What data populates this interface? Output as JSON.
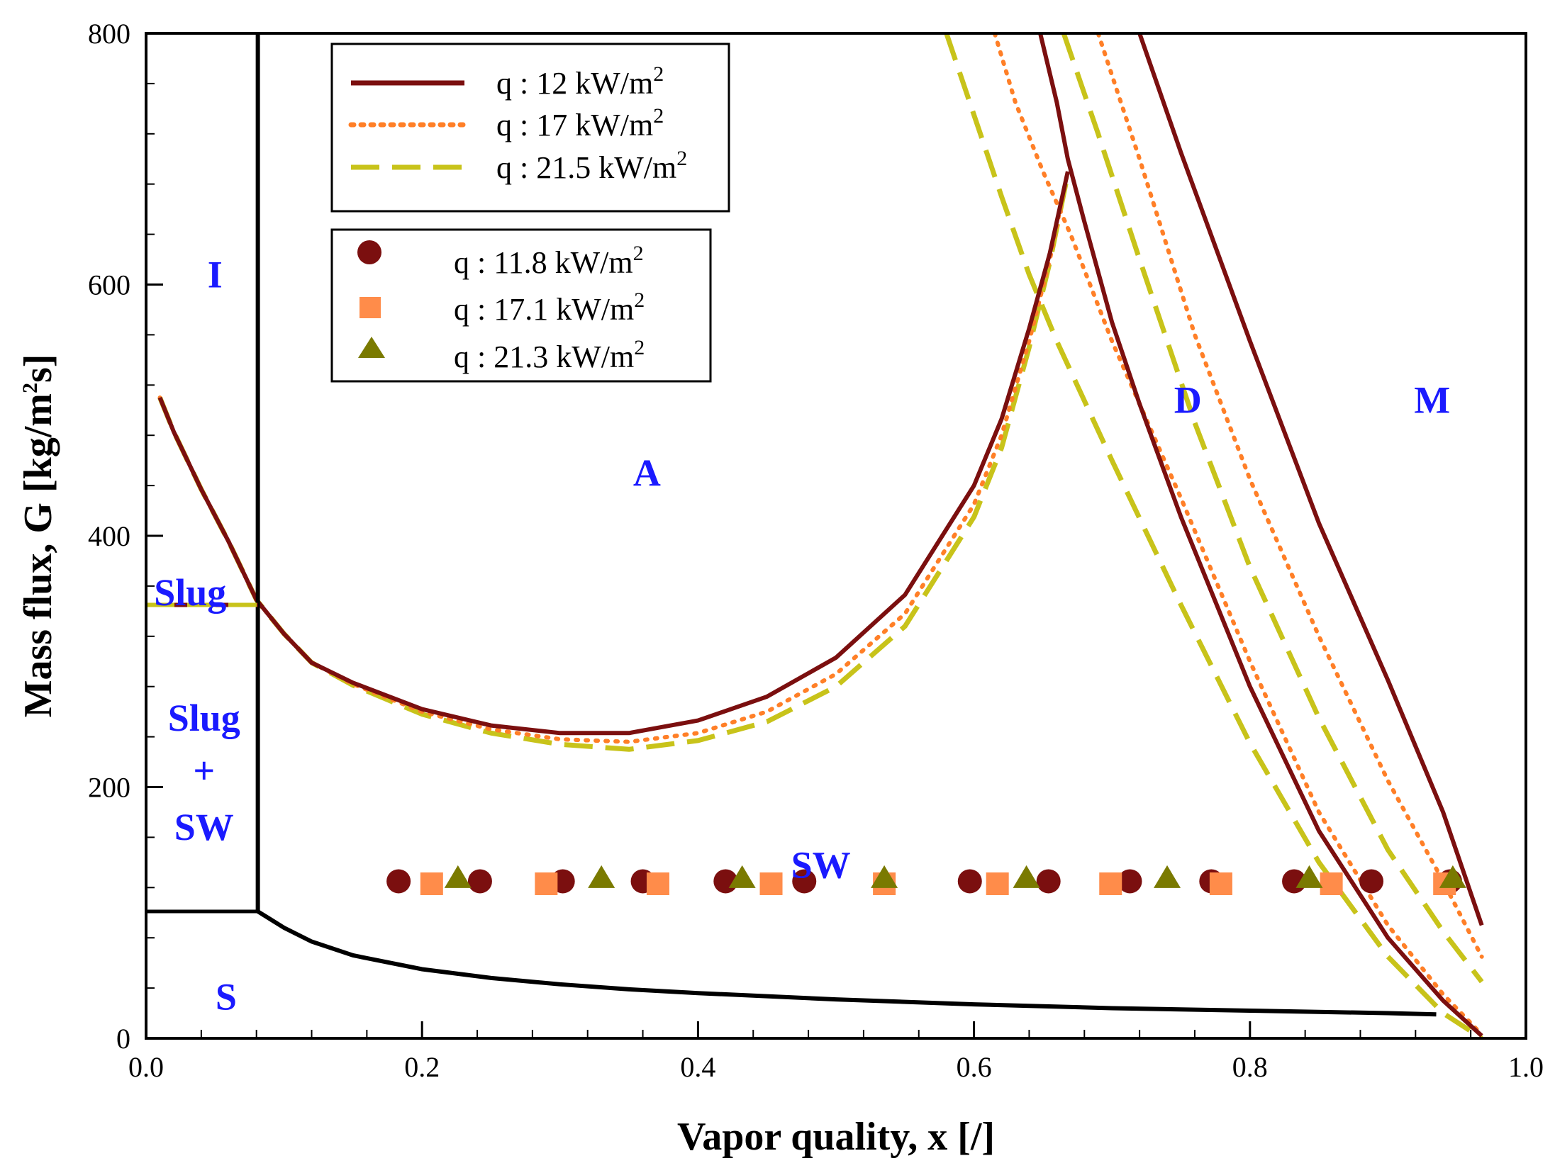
{
  "chart_data": {
    "type": "line",
    "xlabel": "Vapor quality, x [/]",
    "ylabel_main": "Mass flux, G [kg/m",
    "ylabel_sup": "2",
    "ylabel_tail": "s]",
    "xlim": [
      0.0,
      1.0
    ],
    "ylim": [
      0,
      800
    ],
    "x_ticks": [
      0.0,
      0.2,
      0.4,
      0.6,
      0.8,
      1.0
    ],
    "x_tick_labels": [
      "0.0",
      "0.2",
      "0.4",
      "0.6",
      "0.8",
      "1.0"
    ],
    "y_ticks": [
      0,
      200,
      400,
      600,
      800
    ],
    "y_tick_labels": [
      "0",
      "200",
      "400",
      "600",
      "800"
    ],
    "x_minor_step": 0.04,
    "y_minor_step": 40,
    "grid": false,
    "colors": {
      "q12": "#7b0f0f",
      "q17": "#ff7f27",
      "q21": "#c8c31a",
      "boundary": "#000000",
      "region": "#1a1aff",
      "marker_circle": "#7b0f0f",
      "marker_square": "#ff8c4a",
      "marker_triangle": "#7a7a00"
    },
    "model_legend": [
      {
        "prefix": "q : 12  kW/m",
        "sup": "2",
        "style": "solid",
        "color_key": "q12"
      },
      {
        "prefix": "q : 17  kW/m",
        "sup": "2",
        "style": "dotted",
        "color_key": "q17"
      },
      {
        "prefix": "q : 21.5 kW/m",
        "sup": "2",
        "style": "dashed",
        "color_key": "q21"
      }
    ],
    "exp_legend": [
      {
        "prefix": "q : 11.8 kW/m",
        "sup": "2",
        "marker": "circle",
        "color_key": "marker_circle"
      },
      {
        "prefix": "q : 17.1 kW/m",
        "sup": "2",
        "marker": "square",
        "color_key": "marker_square"
      },
      {
        "prefix": "q : 21.3 kW/m",
        "sup": "2",
        "marker": "triangle",
        "color_key": "marker_triangle"
      }
    ],
    "region_labels": [
      {
        "text": "I",
        "x": 0.05,
        "y": 608
      },
      {
        "text": "A",
        "x": 0.363,
        "y": 450
      },
      {
        "text": "D",
        "x": 0.755,
        "y": 508
      },
      {
        "text": "M",
        "x": 0.932,
        "y": 508
      },
      {
        "text": "Slug",
        "x": 0.032,
        "y": 355
      },
      {
        "text": "Slug",
        "x": 0.042,
        "y": 255
      },
      {
        "text": "+",
        "x": 0.042,
        "y": 213
      },
      {
        "text": "SW",
        "x": 0.042,
        "y": 168
      },
      {
        "text": "SW",
        "x": 0.489,
        "y": 138
      },
      {
        "text": "S",
        "x": 0.058,
        "y": 33
      }
    ],
    "boundaries": {
      "vertical_x": 0.081,
      "slug_line_y": 345,
      "sw_slug_line_y": 101,
      "stratified_curve": [
        [
          0.081,
          101
        ],
        [
          0.1,
          88
        ],
        [
          0.12,
          77
        ],
        [
          0.15,
          66
        ],
        [
          0.2,
          55
        ],
        [
          0.25,
          48
        ],
        [
          0.3,
          43
        ],
        [
          0.35,
          39
        ],
        [
          0.4,
          36
        ],
        [
          0.5,
          31
        ],
        [
          0.6,
          27
        ],
        [
          0.7,
          24
        ],
        [
          0.8,
          22
        ],
        [
          0.9,
          20
        ],
        [
          0.935,
          19
        ]
      ]
    },
    "series": [
      {
        "name": "q : 12 kW/m2 (model)",
        "color_key": "q12",
        "style": "solid",
        "segments": [
          [
            [
              0.01,
              510
            ],
            [
              0.02,
              483
            ],
            [
              0.04,
              437
            ],
            [
              0.06,
              395
            ],
            [
              0.08,
              349
            ],
            [
              0.1,
              322
            ],
            [
              0.12,
              299
            ],
            [
              0.15,
              283
            ],
            [
              0.2,
              262
            ],
            [
              0.25,
              249
            ],
            [
              0.3,
              243
            ],
            [
              0.35,
              243
            ],
            [
              0.4,
              253
            ],
            [
              0.45,
              272
            ],
            [
              0.5,
              303
            ],
            [
              0.55,
              353
            ],
            [
              0.6,
              440
            ],
            [
              0.62,
              493
            ],
            [
              0.64,
              565
            ],
            [
              0.655,
              625
            ],
            [
              0.668,
              690
            ]
          ],
          [
            [
              0.648,
              800
            ],
            [
              0.66,
              745
            ],
            [
              0.668,
              700
            ],
            [
              0.68,
              650
            ],
            [
              0.7,
              570
            ],
            [
              0.72,
              505
            ],
            [
              0.75,
              415
            ],
            [
              0.8,
              280
            ],
            [
              0.85,
              165
            ],
            [
              0.9,
              80
            ],
            [
              0.94,
              30
            ],
            [
              0.968,
              2
            ]
          ],
          [
            [
              0.72,
              800
            ],
            [
              0.75,
              705
            ],
            [
              0.8,
              555
            ],
            [
              0.85,
              410
            ],
            [
              0.9,
              285
            ],
            [
              0.94,
              180
            ],
            [
              0.968,
              90
            ]
          ]
        ]
      },
      {
        "name": "q : 17 kW/m2 (model)",
        "color_key": "q17",
        "style": "dotted",
        "segments": [
          [
            [
              0.01,
              510
            ],
            [
              0.02,
              483
            ],
            [
              0.04,
              437
            ],
            [
              0.06,
              395
            ],
            [
              0.08,
              349
            ],
            [
              0.1,
              322
            ],
            [
              0.12,
              299
            ],
            [
              0.15,
              282
            ],
            [
              0.2,
              260
            ],
            [
              0.25,
              246
            ],
            [
              0.3,
              238
            ],
            [
              0.35,
              236
            ],
            [
              0.4,
              243
            ],
            [
              0.45,
              260
            ],
            [
              0.5,
              290
            ],
            [
              0.55,
              338
            ],
            [
              0.6,
              425
            ],
            [
              0.62,
              480
            ],
            [
              0.64,
              555
            ],
            [
              0.655,
              620
            ],
            [
              0.668,
              690
            ]
          ],
          [
            [
              0.615,
              800
            ],
            [
              0.63,
              745
            ],
            [
              0.65,
              690
            ],
            [
              0.67,
              640
            ],
            [
              0.7,
              555
            ],
            [
              0.75,
              430
            ],
            [
              0.8,
              300
            ],
            [
              0.85,
              180
            ],
            [
              0.9,
              90
            ],
            [
              0.94,
              35
            ],
            [
              0.968,
              3
            ]
          ],
          [
            [
              0.69,
              800
            ],
            [
              0.72,
              700
            ],
            [
              0.76,
              560
            ],
            [
              0.8,
              445
            ],
            [
              0.85,
              320
            ],
            [
              0.9,
              205
            ],
            [
              0.94,
              125
            ],
            [
              0.968,
              65
            ]
          ]
        ]
      },
      {
        "name": "q : 21.5 kW/m2 (model)",
        "color_key": "q21",
        "style": "dashed",
        "segments": [
          [
            [
              0.01,
              510
            ],
            [
              0.02,
              483
            ],
            [
              0.04,
              437
            ],
            [
              0.06,
              395
            ],
            [
              0.08,
              349
            ],
            [
              0.1,
              322
            ],
            [
              0.12,
              299
            ],
            [
              0.15,
              281
            ],
            [
              0.2,
              258
            ],
            [
              0.25,
              243
            ],
            [
              0.3,
              234
            ],
            [
              0.35,
              230
            ],
            [
              0.4,
              237
            ],
            [
              0.45,
              252
            ],
            [
              0.5,
              280
            ],
            [
              0.55,
              328
            ],
            [
              0.6,
              415
            ],
            [
              0.62,
              470
            ],
            [
              0.64,
              550
            ],
            [
              0.655,
              618
            ],
            [
              0.668,
              688
            ]
          ],
          [
            [
              0.58,
              800
            ],
            [
              0.6,
              735
            ],
            [
              0.62,
              670
            ],
            [
              0.64,
              608
            ],
            [
              0.66,
              555
            ],
            [
              0.7,
              460
            ],
            [
              0.75,
              345
            ],
            [
              0.8,
              235
            ],
            [
              0.85,
              140
            ],
            [
              0.9,
              65
            ],
            [
              0.94,
              20
            ],
            [
              0.968,
              0
            ]
          ],
          [
            [
              0.665,
              800
            ],
            [
              0.69,
              720
            ],
            [
              0.72,
              620
            ],
            [
              0.76,
              490
            ],
            [
              0.8,
              375
            ],
            [
              0.85,
              255
            ],
            [
              0.9,
              150
            ],
            [
              0.94,
              85
            ],
            [
              0.968,
              45
            ]
          ]
        ]
      }
    ],
    "scatter": [
      {
        "name": "q : 11.8 kW/m2",
        "marker": "circle",
        "color_key": "marker_circle",
        "y": 125,
        "x": [
          0.183,
          0.242,
          0.302,
          0.36,
          0.42,
          0.477,
          0.597,
          0.654,
          0.713,
          0.772,
          0.832,
          0.888,
          0.945
        ]
      },
      {
        "name": "q : 17.1 kW/m2",
        "marker": "square",
        "color_key": "marker_square",
        "y": 123,
        "x": [
          0.207,
          0.29,
          0.371,
          0.453,
          0.535,
          0.617,
          0.699,
          0.779,
          0.859,
          0.941
        ]
      },
      {
        "name": "q : 21.3 kW/m2",
        "marker": "triangle",
        "color_key": "marker_triangle",
        "y": 127,
        "x": [
          0.226,
          0.33,
          0.432,
          0.535,
          0.638,
          0.74,
          0.843,
          0.947
        ]
      }
    ]
  }
}
